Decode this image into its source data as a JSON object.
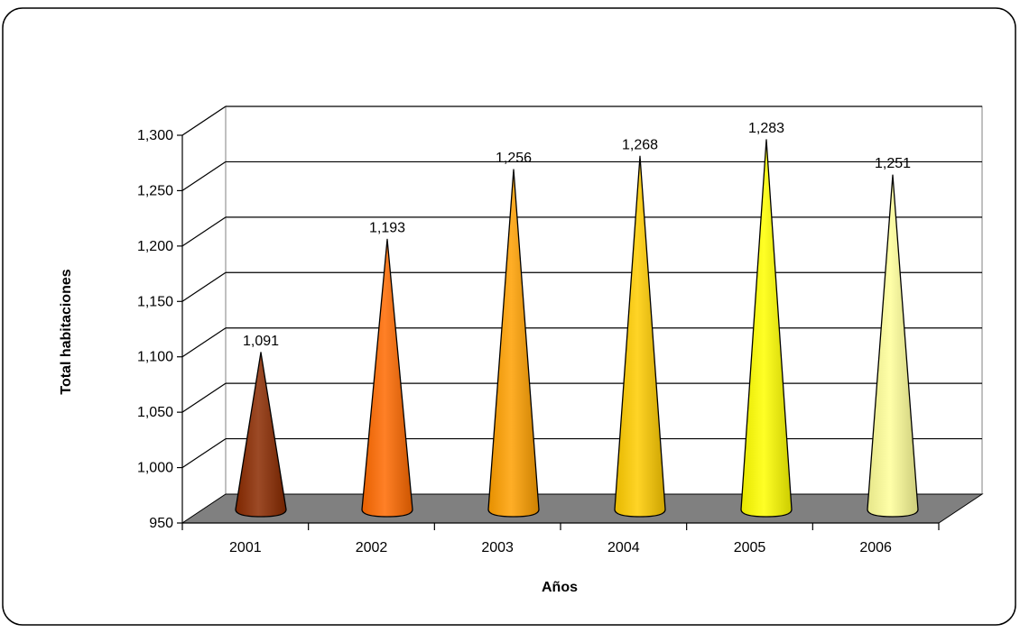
{
  "chart_data": {
    "type": "bar",
    "style": "3d-cone",
    "title": "",
    "xlabel": "Años",
    "ylabel": "Total habitaciones",
    "categories": [
      "2001",
      "2002",
      "2003",
      "2004",
      "2005",
      "2006"
    ],
    "values": [
      1091,
      1193,
      1256,
      1268,
      1283,
      1251
    ],
    "data_labels": [
      "1,091",
      "1,193",
      "1,256",
      "1,268",
      "1,283",
      "1,251"
    ],
    "ylim": [
      950,
      1300
    ],
    "yticks": [
      "950",
      "1,000",
      "1,050",
      "1,100",
      "1,150",
      "1,200",
      "1,250",
      "1,300"
    ],
    "ytick_values": [
      950,
      1000,
      1050,
      1100,
      1150,
      1200,
      1250,
      1300
    ],
    "grid": true,
    "legend": "none",
    "colors": [
      "#8b2a00",
      "#ff6a00",
      "#ffa000",
      "#ffcc00",
      "#ffff00",
      "#ffff99"
    ],
    "floor_color": "#808080"
  }
}
